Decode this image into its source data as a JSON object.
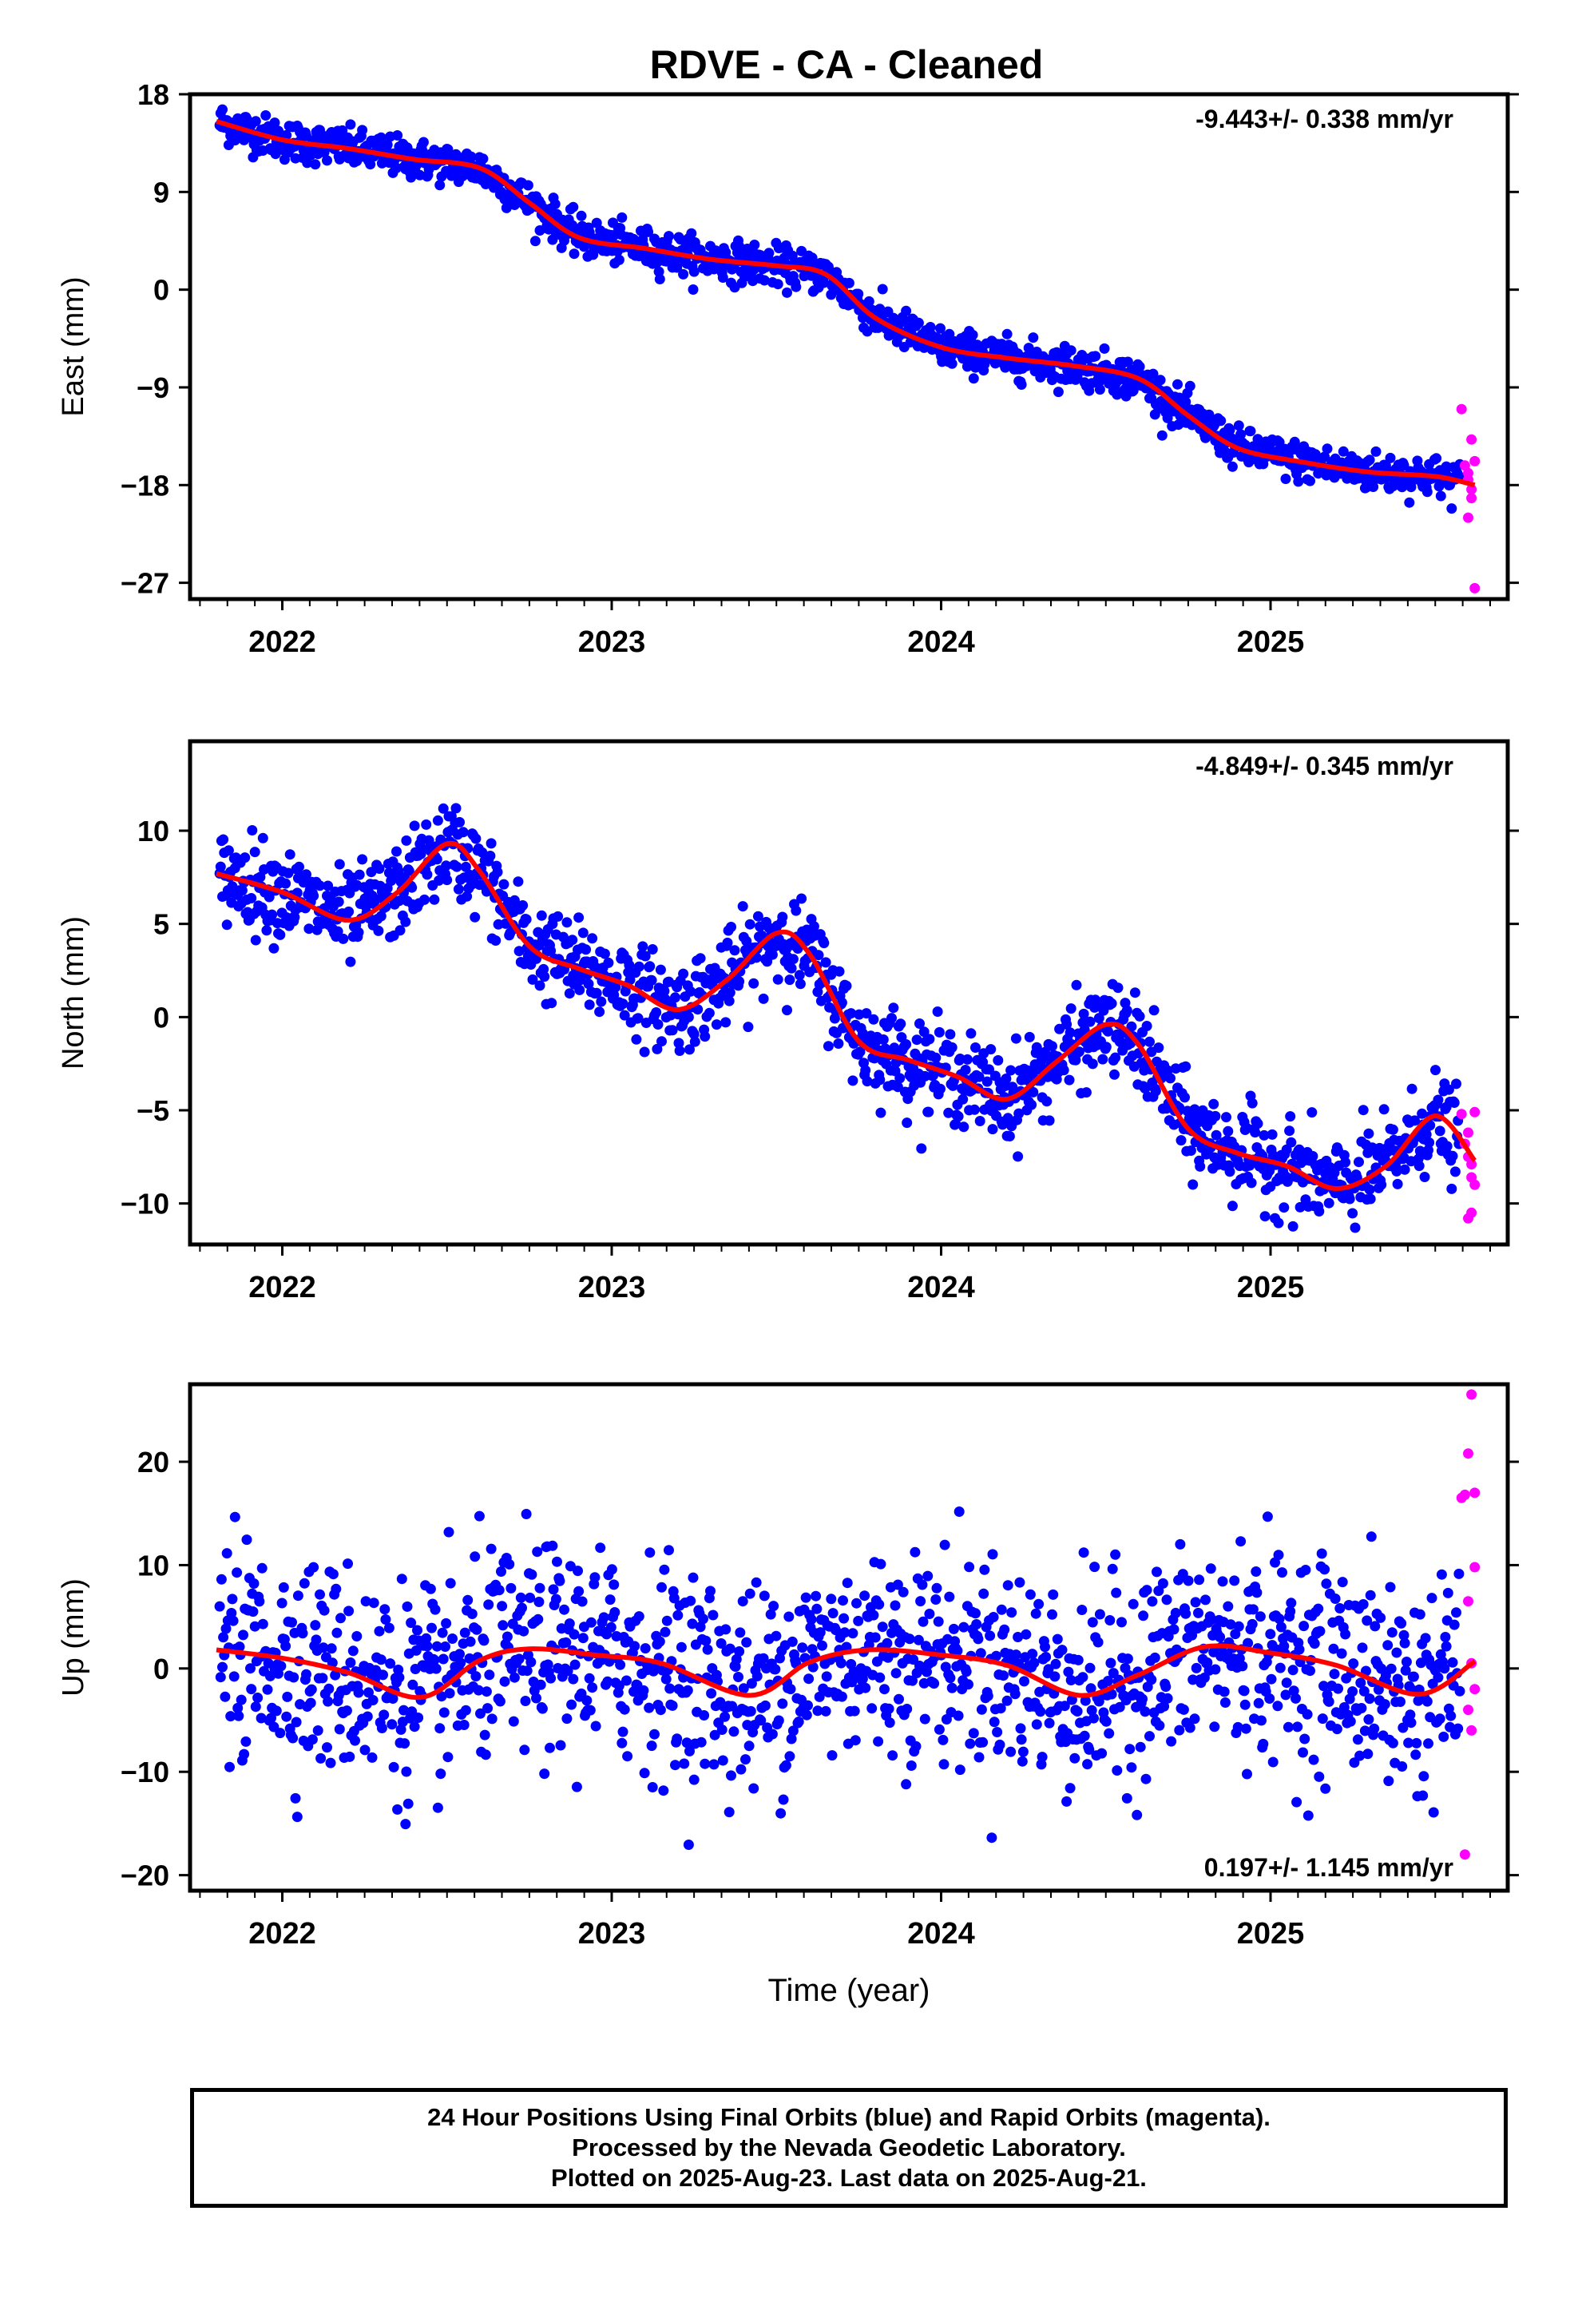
{
  "title": "RDVE  - CA - Cleaned",
  "footer": {
    "line1": "24 Hour Positions Using Final Orbits (blue) and Rapid Orbits (magenta).",
    "line2": "Processed by the Nevada Geodetic Laboratory.",
    "line3": "Plotted on 2025-Aug-23. Last data on 2025-Aug-21."
  },
  "colors": {
    "final": "#0000ff",
    "rapid": "#ff00ff",
    "model": "#ff0000",
    "frame": "#000000"
  },
  "chart_data": [
    {
      "type": "scatter",
      "ylabel": "East (mm)",
      "xlabel": "",
      "rate_text": "-9.443+/- 0.338 mm/yr",
      "rate_position": "top-right",
      "xlim": [
        2021.72,
        2025.72
      ],
      "ylim": [
        -28.5,
        18
      ],
      "yticks": [
        18,
        9,
        0,
        -9,
        -18,
        -27
      ],
      "ytick_labels": [
        "18",
        "9",
        "0",
        "−9",
        "−18",
        "−27"
      ],
      "xticks": [
        2022,
        2023,
        2024,
        2025
      ],
      "xtick_labels": [
        "2022",
        "2023",
        "2024",
        "2025"
      ],
      "grid": false,
      "model": {
        "x": [
          2021.8,
          2022.0,
          2022.2,
          2022.4,
          2022.6,
          2022.75,
          2022.9,
          2023.1,
          2023.3,
          2023.5,
          2023.65,
          2023.8,
          2024.0,
          2024.2,
          2024.4,
          2024.6,
          2024.75,
          2024.9,
          2025.1,
          2025.3,
          2025.5,
          2025.62
        ],
        "y": [
          15.5,
          13.8,
          13.0,
          12.0,
          11.2,
          8.0,
          4.8,
          3.8,
          2.8,
          2.2,
          1.4,
          -2.6,
          -5.3,
          -6.3,
          -7.0,
          -8.2,
          -11.6,
          -14.6,
          -15.9,
          -16.8,
          -17.2,
          -18.0
        ]
      },
      "noise": 0.9,
      "rapid": {
        "x": [
          2025.58,
          2025.59,
          2025.6,
          2025.61,
          2025.62,
          2025.6,
          2025.61,
          2025.62,
          2025.6,
          2025.61
        ],
        "y": [
          -11.0,
          -16.2,
          -17.5,
          -18.4,
          -15.8,
          -21.0,
          -19.2,
          -27.5,
          -16.9,
          -13.8
        ]
      }
    },
    {
      "type": "scatter",
      "ylabel": "North (mm)",
      "xlabel": "",
      "rate_text": "-4.849+/- 0.345 mm/yr",
      "rate_position": "top-right",
      "xlim": [
        2021.72,
        2025.72
      ],
      "ylim": [
        -12.2,
        14.8
      ],
      "yticks": [
        10,
        5,
        0,
        -5,
        -10
      ],
      "ytick_labels": [
        "10",
        "5",
        "0",
        "−5",
        "−10"
      ],
      "xticks": [
        2022,
        2023,
        2024,
        2025
      ],
      "xtick_labels": [
        "2022",
        "2023",
        "2024",
        "2025"
      ],
      "grid": false,
      "model": {
        "x": [
          2021.8,
          2022.0,
          2022.2,
          2022.35,
          2022.5,
          2022.6,
          2022.75,
          2022.9,
          2023.05,
          2023.2,
          2023.35,
          2023.5,
          2023.6,
          2023.75,
          2023.9,
          2024.05,
          2024.2,
          2024.35,
          2024.5,
          2024.6,
          2024.75,
          2024.9,
          2025.05,
          2025.2,
          2025.35,
          2025.5,
          2025.62
        ],
        "y": [
          7.7,
          6.7,
          5.2,
          6.7,
          9.3,
          7.8,
          3.8,
          2.6,
          1.7,
          0.4,
          2.0,
          4.5,
          3.4,
          -1.3,
          -2.3,
          -3.2,
          -4.4,
          -2.4,
          -0.4,
          -1.5,
          -6.0,
          -7.3,
          -8.0,
          -9.2,
          -8.0,
          -5.3,
          -7.7
        ]
      },
      "noise": 1.2,
      "rapid": {
        "x": [
          2025.58,
          2025.59,
          2025.6,
          2025.61,
          2025.62,
          2025.6,
          2025.61,
          2025.62,
          2025.6,
          2025.61
        ],
        "y": [
          -5.2,
          -6.8,
          -7.5,
          -8.6,
          -9.0,
          -10.8,
          -10.5,
          -5.1,
          -6.2,
          -7.9
        ]
      }
    },
    {
      "type": "scatter",
      "ylabel": "Up (mm)",
      "xlabel": "Time (year)",
      "rate_text": "0.197+/- 1.145 mm/yr",
      "rate_position": "bottom-right",
      "xlim": [
        2021.72,
        2025.72
      ],
      "ylim": [
        -21.5,
        27.5
      ],
      "yticks": [
        20,
        10,
        0,
        -10,
        -20
      ],
      "ytick_labels": [
        "20",
        "10",
        "0",
        "−10",
        "−20"
      ],
      "xticks": [
        2022,
        2023,
        2024,
        2025
      ],
      "xtick_labels": [
        "2022",
        "2023",
        "2024",
        "2025"
      ],
      "grid": false,
      "model": {
        "x": [
          2021.8,
          2022.0,
          2022.2,
          2022.42,
          2022.6,
          2022.75,
          2022.95,
          2023.15,
          2023.42,
          2023.6,
          2023.78,
          2024.0,
          2024.2,
          2024.42,
          2024.6,
          2024.8,
          2025.0,
          2025.2,
          2025.45,
          2025.62
        ],
        "y": [
          1.8,
          1.0,
          -0.4,
          -2.8,
          0.8,
          1.9,
          1.3,
          0.5,
          -2.6,
          0.6,
          1.8,
          1.3,
          0.3,
          -2.6,
          -0.6,
          2.1,
          1.5,
          0.3,
          -2.5,
          0.7
        ]
      },
      "noise": 5.0,
      "rapid": {
        "x": [
          2025.58,
          2025.59,
          2025.6,
          2025.61,
          2025.62,
          2025.6,
          2025.61,
          2025.62,
          2025.6,
          2025.61,
          2025.59,
          2025.62
        ],
        "y": [
          16.5,
          16.8,
          20.8,
          26.5,
          9.8,
          6.5,
          0.5,
          -2.0,
          -4.0,
          -6.0,
          -18.0,
          17.0
        ]
      }
    }
  ]
}
